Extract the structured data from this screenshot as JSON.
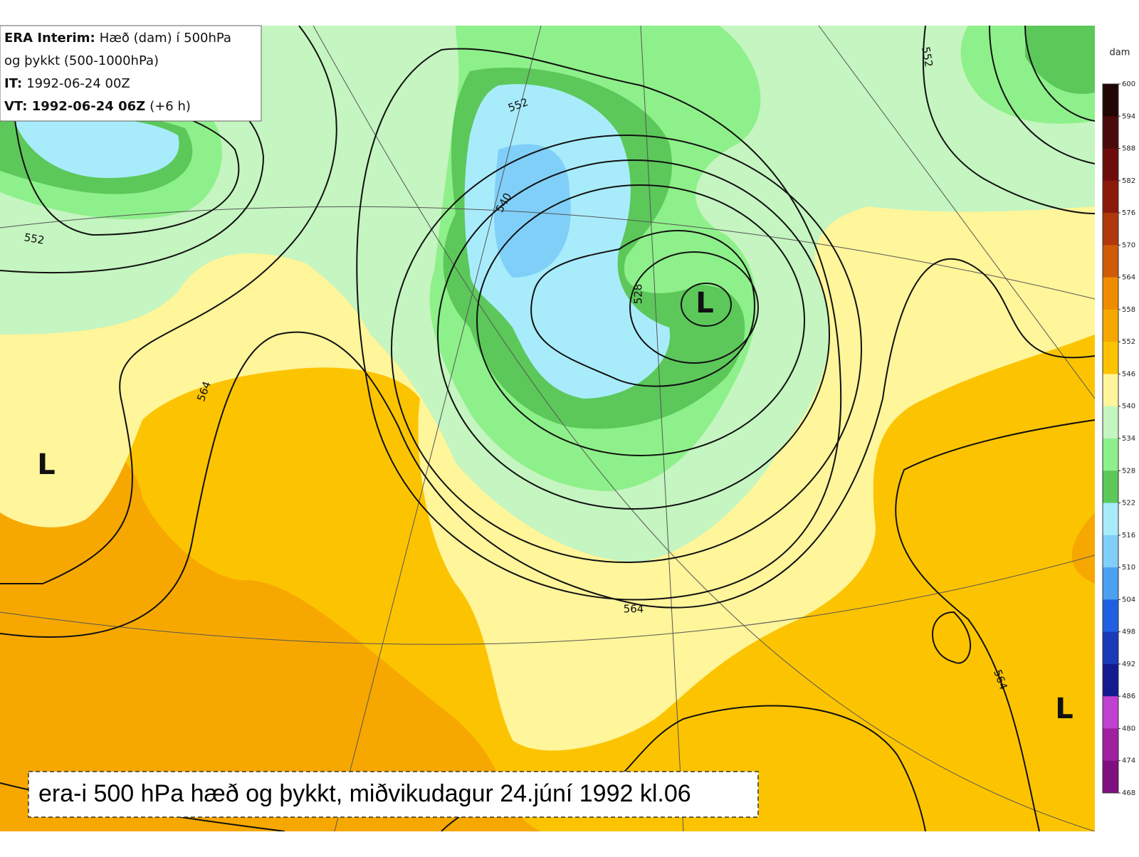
{
  "info": {
    "lines": [
      {
        "label": "ERA Interim:",
        "text": "Hæð (dam) í 500hPa"
      },
      {
        "text": "og þykkt (500-1000hPa)"
      },
      {
        "label": "IT:",
        "text": "1992-06-24 00Z"
      },
      {
        "label": "VT: 1992-06-24 06Z",
        "text": "(+6 h)"
      }
    ]
  },
  "map": {
    "contour_labels": [
      552,
      540,
      528,
      564,
      552,
      564,
      552,
      564
    ],
    "lows": [
      "L",
      "L",
      "L"
    ]
  },
  "colorbar": {
    "unit": "dam",
    "ticks": [
      600,
      594,
      588,
      582,
      576,
      570,
      564,
      558,
      552,
      546,
      540,
      534,
      528,
      522,
      516,
      510,
      504,
      498,
      492,
      486,
      480,
      474,
      468
    ],
    "colors": [
      "#220606",
      "#4a0a0a",
      "#6e0c0c",
      "#8c1a0a",
      "#b0380a",
      "#d05a08",
      "#f08c00",
      "#f7a800",
      "#fcc400",
      "#fff59a",
      "#c5f5c0",
      "#8ef08a",
      "#5cc85a",
      "#a8ecfc",
      "#80cff8",
      "#4ca0f0",
      "#2060e0",
      "#1a3ab8",
      "#141a90",
      "#c040d0",
      "#a020a0",
      "#801080"
    ]
  },
  "caption": "era-i 500 hPa hæð og þykkt, miðvikudagur 24.júní 1992 kl.06"
}
